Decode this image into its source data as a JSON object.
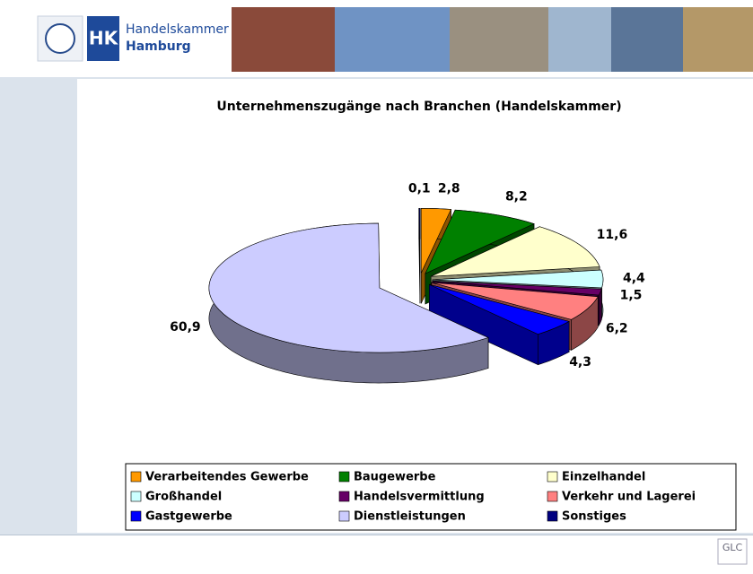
{
  "header": {
    "logo_mark": "HK",
    "org_line1": "Handelskammer",
    "org_line2": "Hamburg"
  },
  "chart_data": {
    "type": "pie",
    "title": "Unternehmenszugänge nach Branchen  (Handelskammer)",
    "categories": [
      "Verarbeitendes Gewerbe",
      "Baugewerbe",
      "Einzelhandel",
      "Großhandel",
      "Handelsvermittlung",
      "Verkehr und Lagerei",
      "Gastgewerbe",
      "Dienstleistungen",
      "Sonstiges"
    ],
    "values": [
      2.8,
      8.2,
      11.6,
      4.4,
      1.5,
      6.2,
      4.3,
      60.9,
      0.1
    ],
    "value_labels": [
      "2,8",
      "8,2",
      "11,6",
      "4,4",
      "1,5",
      "6,2",
      "4,3",
      "60,9",
      "0,1"
    ],
    "colors": [
      "#ff9900",
      "#008000",
      "#ffffcc",
      "#ccffff",
      "#660066",
      "#ff8080",
      "#0000ff",
      "#ccccff",
      "#000080"
    ],
    "legend": "bottom"
  },
  "footer": {
    "logo": "GLC"
  }
}
